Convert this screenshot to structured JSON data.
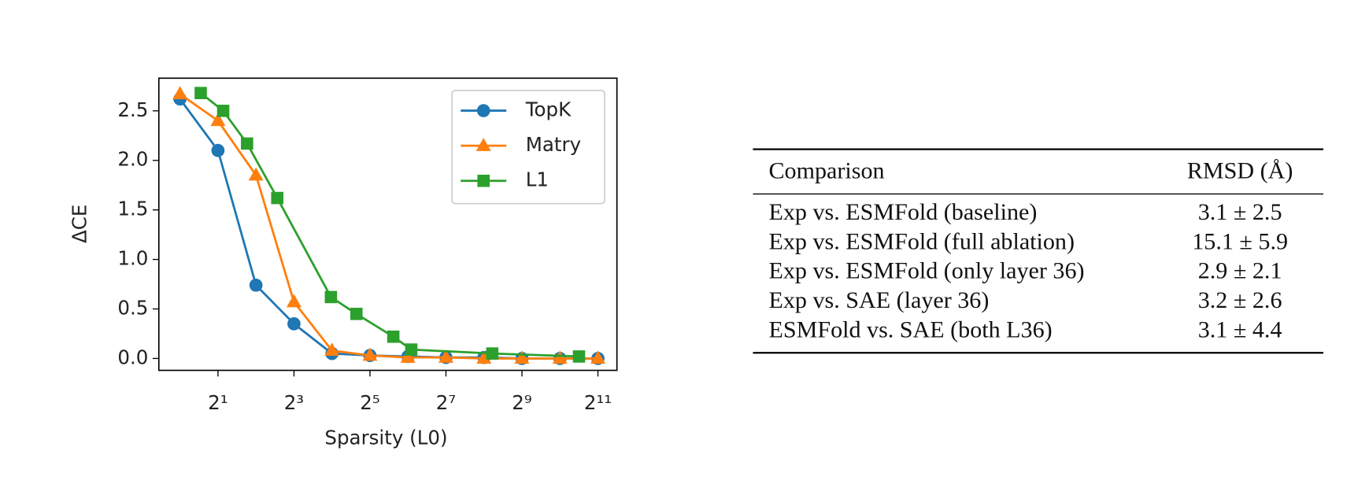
{
  "chart_data": {
    "type": "line",
    "xlabel": "Sparsity (L0)",
    "ylabel": "ΔCE",
    "xscale": "log2",
    "xlim": [
      0.68,
      2896
    ],
    "ylim": [
      -0.12,
      2.83
    ],
    "xticks": [
      {
        "value": 2,
        "label": "2¹"
      },
      {
        "value": 8,
        "label": "2³"
      },
      {
        "value": 32,
        "label": "2⁵"
      },
      {
        "value": 128,
        "label": "2⁷"
      },
      {
        "value": 512,
        "label": "2⁹"
      },
      {
        "value": 2048,
        "label": "2¹¹"
      }
    ],
    "yticks": [
      {
        "value": 0,
        "label": "0.0"
      },
      0.5,
      {
        "value": 1,
        "label": "1.0"
      },
      1.5,
      {
        "value": 2,
        "label": "2.0"
      },
      2.5
    ],
    "legend": "upper right",
    "series": [
      {
        "name": "TopK",
        "color": "#1f77b4",
        "marker": "circle",
        "x": [
          1,
          2,
          4,
          8,
          16,
          32,
          64,
          128,
          256,
          512,
          1024,
          2048
        ],
        "values": [
          2.62,
          2.1,
          0.74,
          0.35,
          0.05,
          0.03,
          0.02,
          0.01,
          0.01,
          0.0,
          0.0,
          0.0
        ]
      },
      {
        "name": "Matry",
        "color": "#ff7f0e",
        "marker": "triangle",
        "x": [
          1,
          2,
          4,
          8,
          16,
          32,
          64,
          128,
          256,
          512,
          1024,
          2048
        ],
        "values": [
          2.67,
          2.4,
          1.85,
          0.57,
          0.08,
          0.03,
          0.01,
          0.01,
          0.0,
          0.0,
          0.0,
          0.0
        ]
      },
      {
        "name": "L1",
        "color": "#2ca02c",
        "marker": "square",
        "x": [
          1.46,
          2.2,
          3.4,
          5.9,
          15.7,
          25,
          49,
          68,
          298,
          1450
        ],
        "values": [
          2.68,
          2.5,
          2.17,
          1.62,
          0.62,
          0.45,
          0.22,
          0.09,
          0.05,
          0.02
        ]
      }
    ]
  },
  "table": {
    "header": [
      "Comparison",
      "RMSD (Å)"
    ],
    "rows": [
      [
        "Exp vs. ESMFold (baseline)",
        "3.1 ± 2.5"
      ],
      [
        "Exp vs. ESMFold (full ablation)",
        "15.1 ± 5.9"
      ],
      [
        "Exp vs. ESMFold (only layer 36)",
        "2.9 ± 2.1"
      ],
      [
        "Exp vs. SAE (layer 36)",
        "3.2 ± 2.6"
      ],
      [
        "ESMFold vs. SAE (both L36)",
        "3.1 ± 4.4"
      ]
    ]
  }
}
